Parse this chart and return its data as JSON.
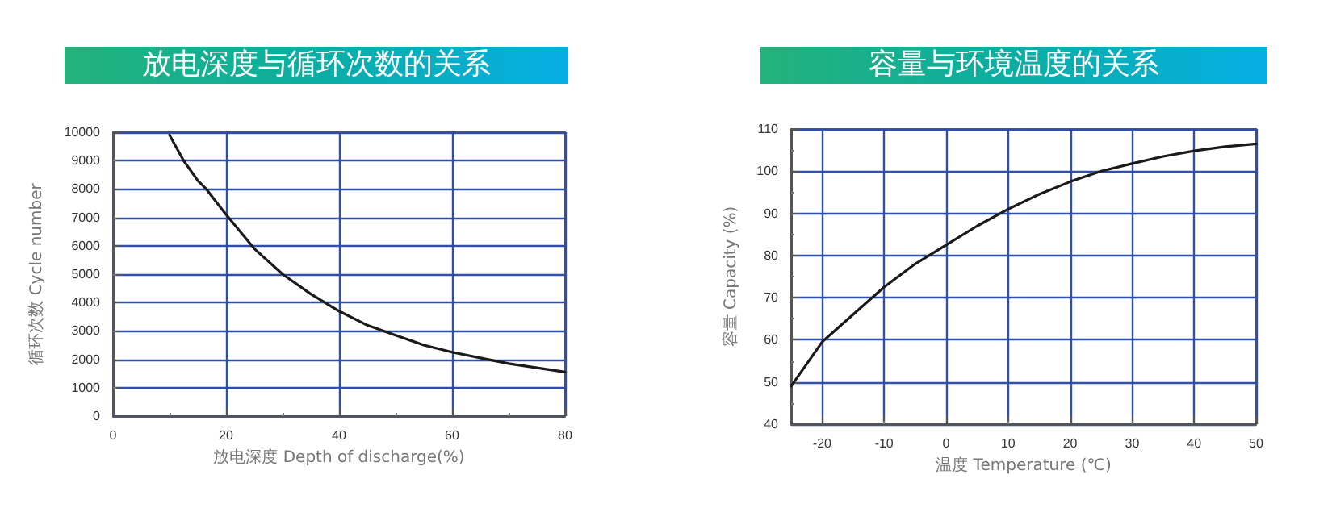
{
  "chart_data": [
    {
      "type": "line",
      "title": "放电深度与循环次数的关系",
      "xlabel": "放电深度 Depth of discharge(%)",
      "ylabel": "循环次数 Cycle number",
      "x": [
        10,
        12.5,
        15,
        16.5,
        20,
        25,
        30,
        35,
        40,
        45,
        50,
        55,
        60,
        65,
        70,
        75,
        80
      ],
      "series": [
        {
          "color": "#1a1a1a",
          "values": [
            9900,
            9000,
            8300,
            8000,
            7100,
            5900,
            5000,
            4300,
            3700,
            3200,
            2850,
            2500,
            2250,
            2050,
            1850,
            1700,
            1550
          ]
        }
      ],
      "xlim": [
        0,
        80
      ],
      "xticks": [
        0,
        20,
        40,
        60,
        80
      ],
      "ylim": [
        0,
        10000
      ],
      "yticks": [
        0,
        1000,
        2000,
        3000,
        4000,
        5000,
        6000,
        7000,
        8000,
        9000,
        10000
      ],
      "grid": true,
      "marker": "none",
      "line_style": "solid"
    },
    {
      "type": "line",
      "title": "容量与环境温度的关系",
      "xlabel": "温度 Temperature (℃)",
      "ylabel": "容量 Capacity (%)",
      "x": [
        -25,
        -20,
        -15,
        -10,
        -5,
        0,
        5,
        10,
        15,
        20,
        25,
        30,
        35,
        40,
        45,
        50
      ],
      "series": [
        {
          "color": "#1a1a1a",
          "values": [
            49,
            59.5,
            66,
            72.5,
            78,
            82.5,
            87,
            91,
            94.5,
            97.5,
            100,
            101.8,
            103.5,
            104.8,
            105.8,
            106.5
          ]
        }
      ],
      "xlim": [
        -25,
        50
      ],
      "xticks": [
        -20,
        -10,
        0,
        10,
        20,
        30,
        40,
        50
      ],
      "ylim": [
        40,
        110
      ],
      "yticks": [
        40,
        50,
        60,
        70,
        80,
        90,
        100,
        110
      ],
      "grid": true,
      "marker": "none",
      "line_style": "solid"
    }
  ]
}
